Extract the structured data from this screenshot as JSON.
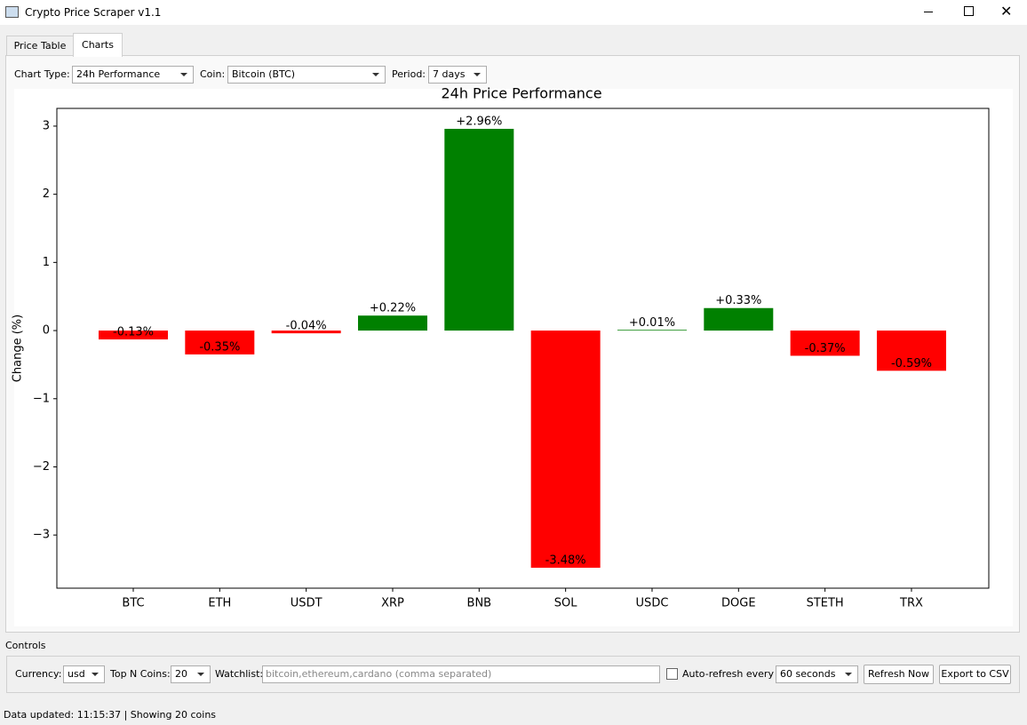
{
  "window": {
    "title": "Crypto Price Scraper v1.1"
  },
  "tabs": [
    "Price Table",
    "Charts"
  ],
  "chart_options": {
    "chart_type_label": "Chart Type:",
    "chart_type": "24h Performance",
    "coin_label": "Coin:",
    "coin": "Bitcoin (BTC)",
    "period_label": "Period:",
    "period": "7 days"
  },
  "chart_data": {
    "type": "bar",
    "title": "24h Price Performance",
    "y_label": "Change (%)",
    "categories": [
      "BTC",
      "ETH",
      "USDT",
      "XRP",
      "BNB",
      "SOL",
      "USDC",
      "DOGE",
      "STETH",
      "TRX"
    ],
    "values": [
      -0.13,
      -0.35,
      -0.04,
      0.22,
      2.96,
      -3.48,
      0.01,
      0.33,
      -0.37,
      -0.59
    ],
    "value_labels": [
      "-0.13%",
      "-0.35%",
      "-0.04%",
      "+0.22%",
      "+2.96%",
      "-3.48%",
      "+0.01%",
      "+0.33%",
      "-0.37%",
      "-0.59%"
    ],
    "positive_color": "#008000",
    "negative_color": "#ff0000",
    "ylim": [
      -3.78,
      3.26
    ],
    "yticks": [
      {
        "value": -3,
        "label": "−3"
      },
      {
        "value": -2,
        "label": "−2"
      },
      {
        "value": -1,
        "label": "−1"
      },
      0,
      1,
      2,
      3
    ],
    "grid": false
  },
  "controls": {
    "title": "Controls",
    "currency_label": "Currency:",
    "currency": "usd",
    "top_n_label": "Top N Coins:",
    "top_n": 20,
    "watchlist_label": "Watchlist:",
    "watchlist_placeholder": "bitcoin,ethereum,cardano (comma separated)",
    "auto_refresh_label": "Auto-refresh every",
    "interval": "60 seconds",
    "refresh_button": "Refresh Now",
    "export_button": "Export to CSV"
  },
  "status": "Data updated: 11:15:37 | Showing 20 coins"
}
